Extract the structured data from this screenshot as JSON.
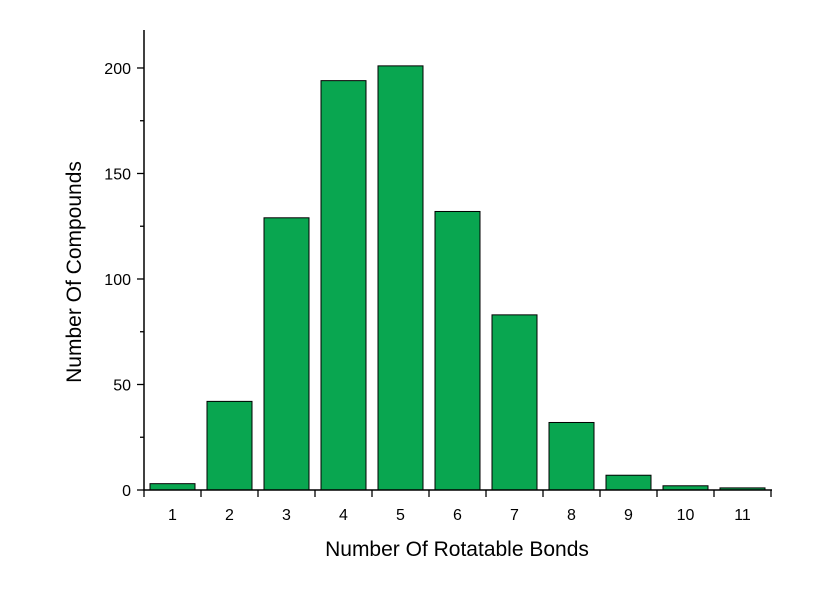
{
  "chart_data": {
    "type": "bar",
    "title": "",
    "xlabel": "Number Of Rotatable Bonds",
    "ylabel": "Number Of Compounds",
    "categories": [
      "1",
      "2",
      "3",
      "4",
      "5",
      "6",
      "7",
      "8",
      "9",
      "10",
      "11"
    ],
    "values": [
      3,
      42,
      129,
      194,
      201,
      132,
      83,
      32,
      7,
      2,
      1
    ],
    "ylim": [
      0,
      218
    ],
    "yticks": [
      0,
      50,
      100,
      150,
      200
    ],
    "yminor_step": 25,
    "grid": false,
    "legend": "none",
    "bar_color": "#09A650"
  }
}
